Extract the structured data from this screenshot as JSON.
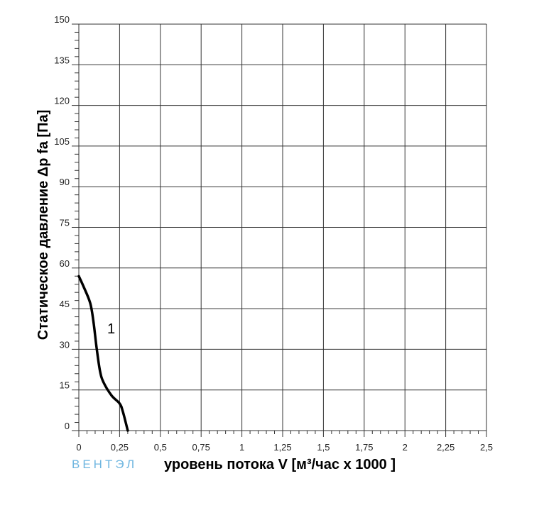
{
  "watermark": "ВЕНТЭЛ",
  "chart_data": {
    "type": "line",
    "xlabel": "уровень потока  V [м³/час x 1000 ]",
    "ylabel": "Статическое давление  Δp fa [Па]",
    "xlim": [
      0,
      2.5
    ],
    "ylim": [
      0,
      150
    ],
    "x_ticks": [
      0,
      0.25,
      0.5,
      0.75,
      1,
      1.25,
      1.5,
      1.75,
      2,
      2.25,
      2.5
    ],
    "x_tick_labels": [
      "0",
      "0,25",
      "0,5",
      "0,75",
      "1",
      "1,25",
      "1,5",
      "1,75",
      "2",
      "2,25",
      "2,5"
    ],
    "y_ticks": [
      0,
      15,
      30,
      45,
      60,
      75,
      90,
      105,
      120,
      135,
      150
    ],
    "y_tick_labels": [
      "0",
      "15",
      "30",
      "45",
      "60",
      "75",
      "90",
      "105",
      "120",
      "135",
      "150"
    ],
    "grid": true,
    "line_color": "#000000",
    "series": [
      {
        "name": "1",
        "x": [
          0,
          0.03,
          0.07,
          0.09,
          0.11,
          0.13,
          0.15,
          0.2,
          0.25,
          0.27,
          0.3
        ],
        "y": [
          57,
          53,
          47,
          40,
          30,
          22,
          18,
          13,
          10,
          7,
          0
        ]
      }
    ]
  }
}
